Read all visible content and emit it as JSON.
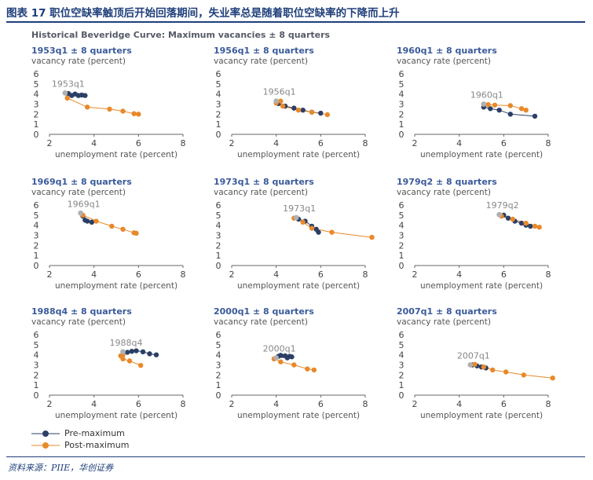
{
  "figure": {
    "title": "图表 17  职位空缺率触顶后开始回落期间，失业率总是随着职位空缺率的下降而上升",
    "main_title": "Historical Beveridge Curve: Maximum vacancies ± 8 quarters",
    "source": "资料来源：PIIE，华创证券"
  },
  "legend": {
    "pre": "Pre-maximum",
    "post": "Post-maximum"
  },
  "colors": {
    "pre": "#2b3f66",
    "post": "#e8892a",
    "peak": "#b0b0b0",
    "title": "#1f3f7a"
  },
  "chart_data": [
    {
      "type": "scatter",
      "title": "1953q1 ± 8 quarters",
      "annotation": "1953q1",
      "ylabel": "vacancy rate (percent)",
      "xlabel": "unemployment rate (percent)",
      "xlim": [
        2,
        8
      ],
      "ylim": [
        0,
        6
      ],
      "xticks": [
        "2",
        "4",
        "6",
        "8"
      ],
      "yticks": [
        "0",
        "1",
        "2",
        "3",
        "4",
        "5",
        "6"
      ],
      "peak": [
        2.7,
        4.1
      ],
      "pre": [
        [
          3.6,
          3.85
        ],
        [
          3.45,
          3.9
        ],
        [
          3.3,
          3.85
        ],
        [
          3.15,
          4.0
        ],
        [
          3.0,
          3.85
        ],
        [
          2.85,
          4.05
        ]
      ],
      "post": [
        [
          2.8,
          3.6
        ],
        [
          3.7,
          2.7
        ],
        [
          4.7,
          2.5
        ],
        [
          5.3,
          2.3
        ],
        [
          5.8,
          2.05
        ],
        [
          6.0,
          2.0
        ]
      ]
    },
    {
      "type": "scatter",
      "title": "1956q1 ± 8 quarters",
      "annotation": "1956q1",
      "ylabel": "vacancy rate (percent)",
      "xlabel": "unemployment rate (percent)",
      "xlim": [
        2,
        8
      ],
      "ylim": [
        0,
        6
      ],
      "xticks": [
        "2",
        "4",
        "6",
        "8"
      ],
      "yticks": [
        "0",
        "1",
        "2",
        "3",
        "4",
        "5",
        "6"
      ],
      "peak": [
        4.0,
        3.3
      ],
      "pre": [
        [
          6.0,
          2.1
        ],
        [
          5.6,
          2.2
        ],
        [
          5.2,
          2.4
        ],
        [
          4.8,
          2.6
        ],
        [
          4.4,
          2.8
        ],
        [
          4.1,
          3.05
        ]
      ],
      "post": [
        [
          4.0,
          3.1
        ],
        [
          4.2,
          3.3
        ],
        [
          4.3,
          2.8
        ],
        [
          5.0,
          2.4
        ],
        [
          5.6,
          2.2
        ],
        [
          6.3,
          1.95
        ]
      ]
    },
    {
      "type": "scatter",
      "title": "1960q1 ± 8 quarters",
      "annotation": "1960q1",
      "ylabel": "vacancy rate (percent)",
      "xlabel": "unemployment rate (percent)",
      "xlim": [
        2,
        8
      ],
      "ylim": [
        0,
        6
      ],
      "xticks": [
        "2",
        "4",
        "6",
        "8"
      ],
      "yticks": [
        "0",
        "1",
        "2",
        "3",
        "4",
        "5",
        "6"
      ],
      "peak": [
        5.1,
        3.0
      ],
      "pre": [
        [
          7.4,
          1.8
        ],
        [
          6.3,
          2.0
        ],
        [
          5.8,
          2.4
        ],
        [
          5.4,
          2.55
        ],
        [
          5.1,
          2.7
        ]
      ],
      "post": [
        [
          5.3,
          2.95
        ],
        [
          5.6,
          2.9
        ],
        [
          6.3,
          2.85
        ],
        [
          6.8,
          2.55
        ],
        [
          7.0,
          2.4
        ]
      ]
    },
    {
      "type": "scatter",
      "title": "1969q1 ± 8 quarters",
      "annotation": "1969q1",
      "ylabel": "vacancy rate (percent)",
      "xlabel": "unemployment rate (percent)",
      "xlim": [
        2,
        8
      ],
      "ylim": [
        0,
        6
      ],
      "xticks": [
        "2",
        "4",
        "6",
        "8"
      ],
      "yticks": [
        "0",
        "1",
        "2",
        "3",
        "4",
        "5",
        "6"
      ],
      "peak": [
        3.4,
        5.2
      ],
      "pre": [
        [
          3.9,
          4.3
        ],
        [
          3.7,
          4.4
        ],
        [
          3.6,
          4.5
        ],
        [
          3.5,
          4.9
        ]
      ],
      "post": [
        [
          3.5,
          5.0
        ],
        [
          4.1,
          4.4
        ],
        [
          4.8,
          3.9
        ],
        [
          5.3,
          3.6
        ],
        [
          5.8,
          3.25
        ],
        [
          5.9,
          3.2
        ]
      ]
    },
    {
      "type": "scatter",
      "title": "1973q1 ± 8 quarters",
      "annotation": "1973q1",
      "ylabel": "vacancy rate (percent)",
      "xlabel": "unemployment rate (percent)",
      "xlim": [
        2,
        8
      ],
      "ylim": [
        0,
        6
      ],
      "xticks": [
        "2",
        "4",
        "6",
        "8"
      ],
      "yticks": [
        "0",
        "1",
        "2",
        "3",
        "4",
        "5",
        "6"
      ],
      "peak": [
        4.9,
        4.75
      ],
      "pre": [
        [
          5.9,
          3.3
        ],
        [
          5.8,
          3.6
        ],
        [
          5.6,
          3.9
        ],
        [
          5.3,
          4.4
        ],
        [
          5.0,
          4.6
        ]
      ],
      "post": [
        [
          4.8,
          4.7
        ],
        [
          5.2,
          4.3
        ],
        [
          5.6,
          3.7
        ],
        [
          6.5,
          3.3
        ],
        [
          8.3,
          2.8
        ]
      ]
    },
    {
      "type": "scatter",
      "title": "1979q2 ± 8 quarters",
      "annotation": "1979q2",
      "ylabel": "vacancy rate (percent)",
      "xlabel": "unemployment rate (percent)",
      "xlim": [
        2,
        8
      ],
      "ylim": [
        0,
        6
      ],
      "xticks": [
        "2",
        "4",
        "6",
        "8"
      ],
      "yticks": [
        "0",
        "1",
        "2",
        "3",
        "4",
        "5",
        "6"
      ],
      "peak": [
        5.8,
        5.05
      ],
      "pre": [
        [
          7.2,
          3.9
        ],
        [
          7.0,
          4.0
        ],
        [
          6.8,
          4.2
        ],
        [
          6.5,
          4.4
        ],
        [
          6.2,
          4.7
        ],
        [
          6.0,
          5.0
        ]
      ],
      "post": [
        [
          5.9,
          4.9
        ],
        [
          6.4,
          4.6
        ],
        [
          7.0,
          4.2
        ],
        [
          7.4,
          3.9
        ],
        [
          7.6,
          3.8
        ]
      ]
    },
    {
      "type": "scatter",
      "title": "1988q4 ± 8 quarters",
      "annotation": "1988q4",
      "ylabel": "vacancy rate (percent)",
      "xlabel": "unemployment rate (percent)",
      "xlim": [
        2,
        8
      ],
      "ylim": [
        0,
        6
      ],
      "xticks": [
        "2",
        "4",
        "6",
        "8"
      ],
      "yticks": [
        "0",
        "1",
        "2",
        "3",
        "4",
        "5",
        "6"
      ],
      "peak": [
        5.3,
        4.3
      ],
      "pre": [
        [
          6.8,
          4.0
        ],
        [
          6.5,
          4.1
        ],
        [
          6.2,
          4.3
        ],
        [
          5.9,
          4.4
        ],
        [
          5.7,
          4.35
        ],
        [
          5.5,
          4.25
        ]
      ],
      "post": [
        [
          5.3,
          4.0
        ],
        [
          5.2,
          3.9
        ],
        [
          5.3,
          3.6
        ],
        [
          5.6,
          3.4
        ],
        [
          6.1,
          2.95
        ]
      ]
    },
    {
      "type": "scatter",
      "title": "2000q1 ± 8 quarters",
      "annotation": "2000q1",
      "ylabel": "vacancy rate (percent)",
      "xlabel": "unemployment rate (percent)",
      "xlim": [
        2,
        8
      ],
      "ylim": [
        0,
        6
      ],
      "xticks": [
        "2",
        "4",
        "6",
        "8"
      ],
      "yticks": [
        "0",
        "1",
        "2",
        "3",
        "4",
        "5",
        "6"
      ],
      "peak": [
        4.0,
        3.7
      ],
      "pre": [
        [
          4.6,
          3.85
        ],
        [
          4.4,
          3.9
        ],
        [
          4.2,
          3.95
        ],
        [
          4.1,
          3.85
        ],
        [
          4.5,
          3.7
        ],
        [
          4.7,
          3.8
        ]
      ],
      "post": [
        [
          3.9,
          3.6
        ],
        [
          4.2,
          3.3
        ],
        [
          4.8,
          3.0
        ],
        [
          5.4,
          2.6
        ],
        [
          5.7,
          2.5
        ]
      ]
    },
    {
      "type": "scatter",
      "title": "2007q1 ± 8 quarters",
      "annotation": "2007q1",
      "ylabel": "vacancy rate (percent)",
      "xlabel": "unemployment rate (percent)",
      "xlim": [
        2,
        8
      ],
      "ylim": [
        0,
        6
      ],
      "xticks": [
        "2",
        "4",
        "6",
        "8"
      ],
      "yticks": [
        "0",
        "1",
        "2",
        "3",
        "4",
        "5",
        "6"
      ],
      "peak": [
        4.5,
        3.0
      ],
      "pre": [
        [
          5.2,
          2.7
        ],
        [
          5.0,
          2.8
        ],
        [
          4.8,
          2.9
        ],
        [
          4.6,
          3.0
        ]
      ],
      "post": [
        [
          4.7,
          3.05
        ],
        [
          5.1,
          2.8
        ],
        [
          5.5,
          2.5
        ],
        [
          6.1,
          2.3
        ],
        [
          6.9,
          2.0
        ],
        [
          8.2,
          1.7
        ]
      ]
    }
  ]
}
